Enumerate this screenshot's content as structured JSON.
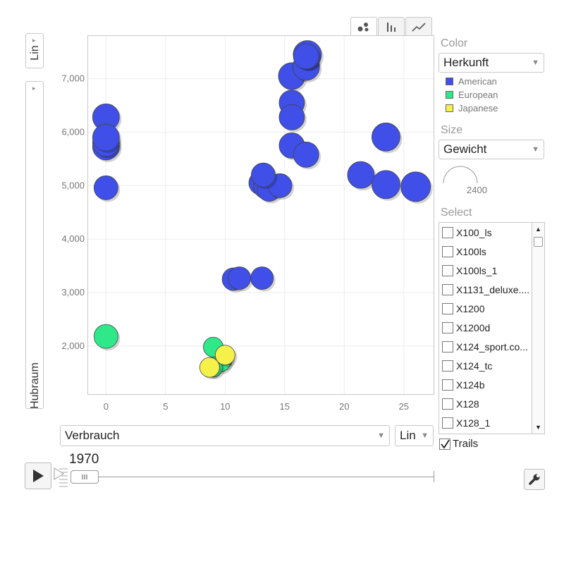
{
  "view_tabs": [
    {
      "name": "bubble-chart-icon",
      "active": true
    },
    {
      "name": "bar-chart-icon",
      "active": false
    },
    {
      "name": "line-chart-icon",
      "active": false
    }
  ],
  "y_axis": {
    "scale": "Lin",
    "variable": "Hubraum"
  },
  "x_axis": {
    "variable": "Verbrauch",
    "scale": "Lin"
  },
  "color_panel": {
    "title": "Color",
    "selected": "Herkunft",
    "legend": [
      {
        "label": "American",
        "color": "#3f4fe8"
      },
      {
        "label": "European",
        "color": "#2ee88a"
      },
      {
        "label": "Japanese",
        "color": "#f5f04a"
      }
    ]
  },
  "size_panel": {
    "title": "Size",
    "selected": "Gewicht",
    "legend_value": "2400"
  },
  "select_panel": {
    "title": "Select",
    "items": [
      "X100_ls",
      "X100ls",
      "X100ls_1",
      "X1131_deluxe....",
      "X1200",
      "X1200d",
      "X124_sport.co...",
      "X124_tc",
      "X124b",
      "X128",
      "X128_1"
    ]
  },
  "trails": {
    "label": "Trails",
    "checked": true
  },
  "playback": {
    "year": "1970"
  },
  "chart_data": {
    "type": "scatter",
    "xlabel": "Verbrauch",
    "ylabel": "Hubraum",
    "xlim": [
      -1.5,
      27.5
    ],
    "ylim": [
      1100,
      7800
    ],
    "x_ticks": [
      0,
      5,
      10,
      15,
      20,
      25
    ],
    "y_ticks": [
      2000,
      3000,
      4000,
      5000,
      6000,
      7000
    ],
    "y_tick_labels": [
      "2,000",
      "3,000",
      "4,000",
      "5,000",
      "6,000",
      "7,000"
    ],
    "grid": true,
    "series": [
      {
        "name": "American",
        "color": "#3f4fe8",
        "points": [
          {
            "x": 0,
            "y": 6280,
            "r": 19
          },
          {
            "x": 0,
            "y": 5730,
            "r": 19
          },
          {
            "x": 0,
            "y": 5800,
            "r": 19
          },
          {
            "x": 0,
            "y": 5900,
            "r": 19
          },
          {
            "x": 0,
            "y": 4960,
            "r": 17
          },
          {
            "x": 10.7,
            "y": 3250,
            "r": 16
          },
          {
            "x": 11.2,
            "y": 3270,
            "r": 16
          },
          {
            "x": 13.1,
            "y": 3270,
            "r": 16
          },
          {
            "x": 13.0,
            "y": 5050,
            "r": 17
          },
          {
            "x": 13.4,
            "y": 4980,
            "r": 17
          },
          {
            "x": 13.7,
            "y": 4930,
            "r": 17
          },
          {
            "x": 14.6,
            "y": 5000,
            "r": 17
          },
          {
            "x": 13.2,
            "y": 5200,
            "r": 17
          },
          {
            "x": 15.6,
            "y": 7050,
            "r": 19
          },
          {
            "x": 15.6,
            "y": 6550,
            "r": 18
          },
          {
            "x": 15.6,
            "y": 6280,
            "r": 18
          },
          {
            "x": 15.6,
            "y": 5750,
            "r": 18
          },
          {
            "x": 16.8,
            "y": 5580,
            "r": 18
          },
          {
            "x": 16.8,
            "y": 7220,
            "r": 19
          },
          {
            "x": 16.9,
            "y": 7450,
            "r": 20
          },
          {
            "x": 16.8,
            "y": 7420,
            "r": 18
          },
          {
            "x": 21.4,
            "y": 5200,
            "r": 19
          },
          {
            "x": 23.5,
            "y": 5020,
            "r": 20
          },
          {
            "x": 26.0,
            "y": 4980,
            "r": 21
          },
          {
            "x": 23.5,
            "y": 5910,
            "r": 20
          }
        ]
      },
      {
        "name": "European",
        "color": "#2ee88a",
        "points": [
          {
            "x": 0,
            "y": 2180,
            "r": 17
          },
          {
            "x": 9.8,
            "y": 1760,
            "r": 14
          },
          {
            "x": 9.6,
            "y": 1700,
            "r": 14
          },
          {
            "x": 9.0,
            "y": 1980,
            "r": 14
          },
          {
            "x": 9.0,
            "y": 1590,
            "r": 13
          }
        ]
      },
      {
        "name": "Japanese",
        "color": "#f5f04a",
        "points": [
          {
            "x": 10.0,
            "y": 1830,
            "r": 14
          },
          {
            "x": 8.7,
            "y": 1600,
            "r": 14
          }
        ]
      }
    ]
  }
}
